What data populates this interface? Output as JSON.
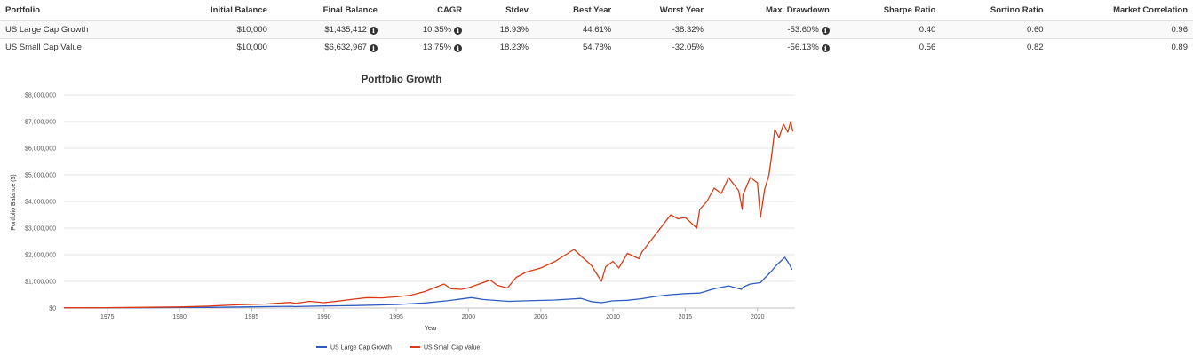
{
  "table": {
    "headers": [
      "Portfolio",
      "Initial Balance",
      "Final Balance",
      "CAGR",
      "Stdev",
      "Best Year",
      "Worst Year",
      "Max. Drawdown",
      "Sharpe Ratio",
      "Sortino Ratio",
      "Market Correlation"
    ],
    "rows": [
      {
        "portfolio": "US Large Cap Growth",
        "initial": "$10,000",
        "final": "$1,435,412",
        "cagr": "10.35%",
        "stdev": "16.93%",
        "best": "44.61%",
        "worst": "-38.32%",
        "drawdown": "-53.60%",
        "sharpe": "0.40",
        "sortino": "0.60",
        "correlation": "0.96"
      },
      {
        "portfolio": "US Small Cap Value",
        "initial": "$10,000",
        "final": "$6,632,967",
        "cagr": "13.75%",
        "stdev": "18.23%",
        "best": "54.78%",
        "worst": "-32.05%",
        "drawdown": "-56.13%",
        "sharpe": "0.56",
        "sortino": "0.82",
        "correlation": "0.89"
      }
    ]
  },
  "chart_data": {
    "type": "line",
    "title": "Portfolio Growth",
    "xlabel": "Year",
    "ylabel": "Portfolio Balance ($)",
    "xlim": [
      1972,
      2022.6
    ],
    "ylim": [
      0,
      8000000
    ],
    "grid": true,
    "legend_position": "bottom-center",
    "x_ticks": [
      1975,
      1980,
      1985,
      1990,
      1995,
      2000,
      2005,
      2010,
      2015,
      2020
    ],
    "y_ticks": [
      0,
      1000000,
      2000000,
      3000000,
      4000000,
      5000000,
      6000000,
      7000000,
      8000000
    ],
    "y_tick_labels": [
      "$0",
      "$1,000,000",
      "$2,000,000",
      "$3,000,000",
      "$4,000,000",
      "$5,000,000",
      "$6,000,000",
      "$7,000,000",
      "$8,000,000"
    ],
    "series": [
      {
        "name": "US Large Cap Growth",
        "color": "#2f5cc0",
        "x": [
          1972,
          1974,
          1975,
          1978,
          1980,
          1982,
          1985,
          1987.7,
          1988,
          1990,
          1992,
          1995,
          1997,
          1998.5,
          1999.5,
          2000.2,
          2001,
          2002,
          2002.8,
          2004,
          2006,
          2007.8,
          2008.5,
          2009.2,
          2010,
          2011,
          2012,
          2013,
          2014,
          2015,
          2016,
          2017,
          2018,
          2018.9,
          2019,
          2019.5,
          2020.2,
          2020.5,
          2021,
          2021.3,
          2021.6,
          2021.9,
          2022.2,
          2022.4
        ],
        "values": [
          10000,
          8000,
          10000,
          14000,
          22000,
          25000,
          42000,
          64000,
          55000,
          76000,
          90000,
          130000,
          190000,
          270000,
          340000,
          390000,
          320000,
          280000,
          250000,
          270000,
          300000,
          360000,
          240000,
          200000,
          270000,
          290000,
          350000,
          440000,
          500000,
          540000,
          560000,
          720000,
          830000,
          700000,
          780000,
          900000,
          950000,
          1120000,
          1400000,
          1600000,
          1750000,
          1900000,
          1650000,
          1435412
        ]
      },
      {
        "name": "US Small Cap Value",
        "color": "#d93a14",
        "x": [
          1972,
          1974,
          1975,
          1977,
          1980,
          1982,
          1984,
          1986,
          1987.7,
          1988,
          1989,
          1990,
          1991,
          1992,
          1993,
          1994,
          1995,
          1996,
          1997,
          1998.3,
          1998.8,
          1999.5,
          2000,
          2001,
          2001.5,
          2002,
          2002.7,
          2003.3,
          2004,
          2005,
          2006,
          2007.3,
          2007.9,
          2008.5,
          2009.2,
          2009.5,
          2010,
          2010.4,
          2011,
          2011.8,
          2012,
          2013,
          2014,
          2014.5,
          2015,
          2015.8,
          2016,
          2016.5,
          2017,
          2017.5,
          2018,
          2018.7,
          2018.95,
          2019,
          2019.5,
          2020,
          2020.2,
          2020.5,
          2020.8,
          2021,
          2021.2,
          2021.5,
          2021.8,
          2022.1,
          2022.3,
          2022.45
        ],
        "values": [
          10000,
          9000,
          14000,
          25000,
          40000,
          70000,
          120000,
          150000,
          210000,
          170000,
          250000,
          200000,
          260000,
          330000,
          390000,
          380000,
          420000,
          480000,
          620000,
          900000,
          720000,
          700000,
          760000,
          950000,
          1050000,
          850000,
          750000,
          1150000,
          1350000,
          1500000,
          1750000,
          2200000,
          1900000,
          1600000,
          1000000,
          1550000,
          1750000,
          1500000,
          2050000,
          1850000,
          2100000,
          2800000,
          3500000,
          3350000,
          3400000,
          3000000,
          3700000,
          4000000,
          4500000,
          4300000,
          4900000,
          4400000,
          3700000,
          4250000,
          4900000,
          4700000,
          3400000,
          4450000,
          5000000,
          5800000,
          6700000,
          6400000,
          6900000,
          6600000,
          7000000,
          6632967
        ]
      }
    ]
  }
}
